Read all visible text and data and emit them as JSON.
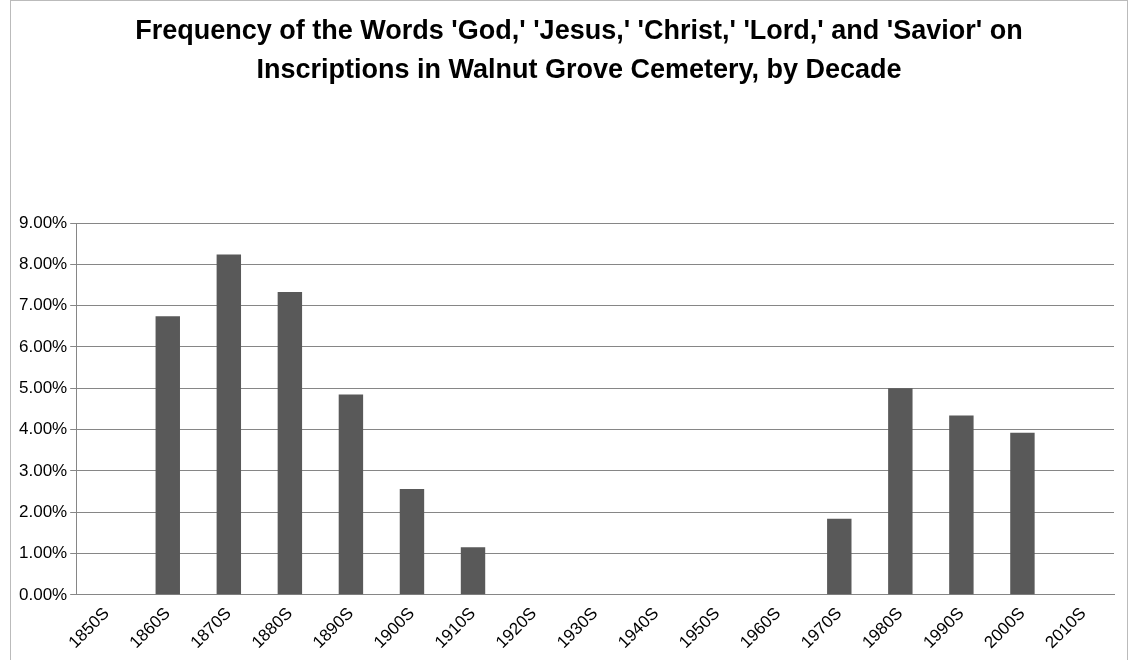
{
  "chart_data": {
    "type": "bar",
    "title": "Frequency of the Words 'God,' 'Jesus,' 'Christ,' 'Lord,' and 'Savior' on Inscriptions in Walnut Grove Cemetery, by Decade",
    "categories": [
      "1850S",
      "1860S",
      "1870S",
      "1880S",
      "1890S",
      "1900S",
      "1910S",
      "1920S",
      "1930S",
      "1940S",
      "1950S",
      "1960S",
      "1970S",
      "1980S",
      "1990S",
      "2000S",
      "2010S"
    ],
    "values": [
      0,
      6.74,
      8.24,
      7.33,
      4.85,
      2.56,
      1.15,
      0,
      0,
      0,
      0,
      0,
      1.84,
      5.0,
      4.34,
      3.92,
      0
    ],
    "color": "#595959",
    "ylim": [
      0,
      9
    ],
    "yticks": [
      {
        "value": 0,
        "label": "0.00%"
      },
      {
        "value": 1,
        "label": "1.00%"
      },
      {
        "value": 2,
        "label": "2.00%"
      },
      {
        "value": 3,
        "label": "3.00%"
      },
      {
        "value": 4,
        "label": "4.00%"
      },
      {
        "value": 5,
        "label": "5.00%"
      },
      {
        "value": 6,
        "label": "6.00%"
      },
      {
        "value": 7,
        "label": "7.00%"
      },
      {
        "value": 8,
        "label": "8.00%"
      },
      {
        "value": 9,
        "label": "9.00%"
      }
    ],
    "grid": "y"
  }
}
